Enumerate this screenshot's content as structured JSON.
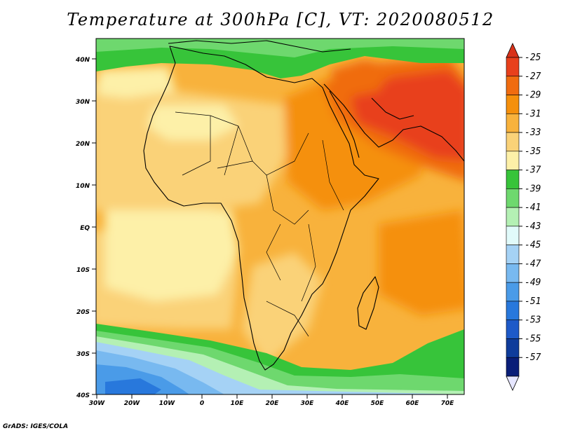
{
  "title": "Temperature at 300hPa [C], VT: 2020080512",
  "credit": "GrADS: IGES/COLA",
  "map": {
    "lon_range": [
      -30,
      75
    ],
    "lat_range": [
      -40,
      45
    ],
    "lat_ticks": [
      "40N",
      "30N",
      "20N",
      "10N",
      "EQ",
      "10S",
      "20S",
      "30S",
      "40S"
    ],
    "lon_ticks": [
      "30W",
      "20W",
      "10W",
      "0",
      "10E",
      "20E",
      "30E",
      "40E",
      "50E",
      "60E",
      "70E"
    ],
    "colors": {
      "c25": "#e8401c",
      "c27": "#f06c10",
      "c29": "#f5900c",
      "c31": "#f8b23c",
      "c33": "#fad278",
      "c35": "#fdf0a8",
      "c37": "#37c43a",
      "c39": "#6ed86e",
      "c41": "#b4f0b4",
      "c45": "#a5d2f5",
      "c47": "#78b9f0",
      "c49": "#4a9be8",
      "c51": "#2878dc"
    }
  },
  "colorbar": {
    "labels": [
      "-25",
      "-27",
      "-29",
      "-31",
      "-33",
      "-35",
      "-37",
      "-39",
      "-41",
      "-43",
      "-45",
      "-47",
      "-49",
      "-51",
      "-53",
      "-55",
      "-57"
    ],
    "colors": [
      "#e8401c",
      "#f06c10",
      "#f5900c",
      "#f8b23c",
      "#fad278",
      "#fdf0a8",
      "#37c43a",
      "#6ed86e",
      "#b4f0b4",
      "#e1fafa",
      "#a5d2f5",
      "#78b9f0",
      "#4a9be8",
      "#2878dc",
      "#1e5ac8",
      "#0f3c9b",
      "#0a1e78"
    ],
    "top_color": "#d8321a",
    "bottom_color": "#e6e6ff"
  }
}
